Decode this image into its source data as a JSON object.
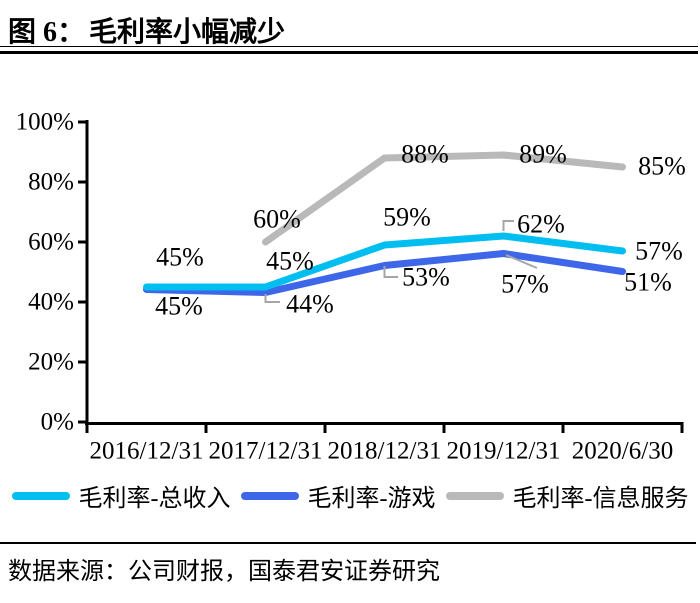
{
  "page": {
    "background": "#ffffff"
  },
  "header": {
    "figure_label": "图 6：",
    "title": "毛利率小幅减少"
  },
  "footer": {
    "source": "数据来源：公司财报，国泰君安证券研究"
  },
  "chart_data": {
    "type": "line",
    "title": "毛利率小幅减少",
    "categories": [
      "2016/12/31",
      "2017/12/31",
      "2018/12/31",
      "2019/12/31",
      "2020/6/30"
    ],
    "series": [
      {
        "name": "毛利率-总收入",
        "color": "#00BEF0",
        "values": [
          45,
          45,
          59,
          62,
          57
        ],
        "labels": [
          "45%",
          "45%",
          "59%",
          "62%",
          "57%"
        ]
      },
      {
        "name": "毛利率-游戏",
        "color": "#3E66E8",
        "values": [
          45,
          44,
          53,
          57,
          51
        ],
        "labels": [
          "45%",
          "44%",
          "53%",
          "57%",
          "51%"
        ]
      },
      {
        "name": "毛利率-信息服务",
        "color": "#B9B9B9",
        "values": [
          null,
          60,
          88,
          89,
          85
        ],
        "labels": [
          null,
          "60%",
          "88%",
          "89%",
          "85%"
        ]
      }
    ],
    "ylim": [
      0,
      100
    ],
    "yticks": [
      "0%",
      "20%",
      "40%",
      "60%",
      "80%",
      "100%"
    ],
    "grid": false,
    "data_labels": true,
    "legend_position": "bottom",
    "axis_color": "#000000",
    "leader_line_color": "#A6A6A6"
  }
}
